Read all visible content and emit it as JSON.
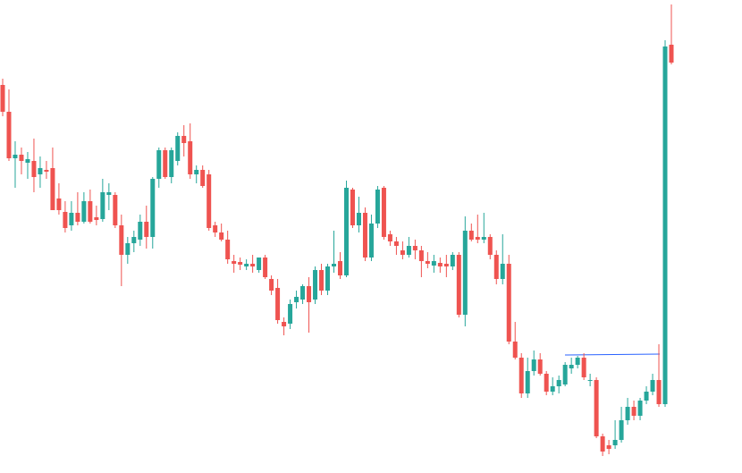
{
  "chart_data": {
    "type": "candlestick",
    "up_color": "#26a69a",
    "down_color": "#ef5350",
    "ylim": [
      0,
      529
    ],
    "open": [
      434,
      404,
      352,
      356,
      347,
      349,
      334,
      339,
      341,
      307,
      292,
      277,
      291,
      281,
      304,
      286,
      284,
      311,
      311,
      277,
      244,
      257,
      261,
      281,
      264,
      329,
      361,
      331,
      349,
      377,
      371,
      334,
      339,
      334,
      277,
      269,
      261,
      237,
      236,
      231,
      234,
      227,
      241,
      217,
      207,
      169,
      167,
      191,
      194,
      209,
      194,
      227,
      204,
      231,
      237,
      221,
      317,
      277,
      291,
      241,
      279,
      319,
      267,
      259,
      249,
      244,
      254,
      249,
      237,
      232,
      235,
      234,
      231,
      244,
      177,
      271,
      264,
      261,
      264,
      244,
      217,
      234,
      147,
      129,
      89,
      114,
      127,
      111,
      91,
      97,
      99,
      117,
      121,
      129,
      104,
      104,
      41,
      31,
      31,
      37,
      59,
      74,
      64,
      81,
      91,
      104,
      77,
      479
    ],
    "high": [
      441,
      429,
      371,
      364,
      359,
      374,
      354,
      349,
      364,
      324,
      304,
      304,
      314,
      314,
      317,
      299,
      329,
      324,
      314,
      289,
      264,
      271,
      289,
      299,
      331,
      364,
      364,
      364,
      381,
      389,
      391,
      344,
      344,
      339,
      281,
      279,
      271,
      244,
      241,
      239,
      244,
      241,
      244,
      221,
      217,
      174,
      194,
      204,
      211,
      219,
      231,
      234,
      234,
      271,
      247,
      327,
      319,
      309,
      297,
      289,
      321,
      321,
      271,
      264,
      259,
      264,
      261,
      254,
      247,
      244,
      241,
      244,
      247,
      247,
      287,
      279,
      289,
      291,
      267,
      249,
      267,
      244,
      169,
      134,
      129,
      137,
      134,
      114,
      107,
      109,
      124,
      129,
      131,
      134,
      111,
      107,
      44,
      37,
      59,
      74,
      84,
      81,
      84,
      97,
      111,
      144,
      484,
      524
    ],
    "low": [
      399,
      349,
      319,
      334,
      329,
      314,
      319,
      329,
      294,
      289,
      269,
      271,
      277,
      279,
      279,
      277,
      281,
      294,
      274,
      209,
      234,
      247,
      254,
      251,
      251,
      319,
      329,
      324,
      344,
      354,
      329,
      324,
      319,
      271,
      264,
      259,
      234,
      224,
      227,
      227,
      224,
      224,
      217,
      199,
      167,
      154,
      161,
      184,
      189,
      157,
      189,
      199,
      199,
      224,
      217,
      219,
      274,
      269,
      237,
      237,
      274,
      261,
      254,
      244,
      239,
      241,
      239,
      219,
      229,
      224,
      224,
      219,
      227,
      174,
      164,
      259,
      257,
      257,
      239,
      211,
      211,
      144,
      127,
      84,
      84,
      109,
      109,
      87,
      87,
      89,
      97,
      111,
      117,
      104,
      97,
      39,
      19,
      21,
      27,
      34,
      54,
      59,
      59,
      77,
      87,
      74,
      74,
      457
    ],
    "close": [
      404,
      352,
      356,
      349,
      351,
      331,
      341,
      337,
      294,
      294,
      274,
      291,
      281,
      304,
      281,
      283,
      314,
      314,
      277,
      244,
      257,
      264,
      281,
      264,
      329,
      361,
      331,
      361,
      377,
      369,
      334,
      339,
      321,
      274,
      269,
      261,
      239,
      234,
      233,
      234,
      231,
      241,
      219,
      204,
      171,
      164,
      189,
      197,
      209,
      191,
      227,
      204,
      231,
      234,
      221,
      319,
      277,
      291,
      241,
      279,
      317,
      264,
      259,
      254,
      244,
      254,
      249,
      237,
      234,
      237,
      231,
      231,
      244,
      177,
      271,
      261,
      261,
      264,
      244,
      217,
      234,
      147,
      129,
      89,
      114,
      127,
      111,
      91,
      97,
      104,
      121,
      121,
      129,
      107,
      104,
      41,
      24,
      27,
      37,
      59,
      74,
      64,
      81,
      91,
      104,
      77,
      477,
      459
    ]
  }
}
